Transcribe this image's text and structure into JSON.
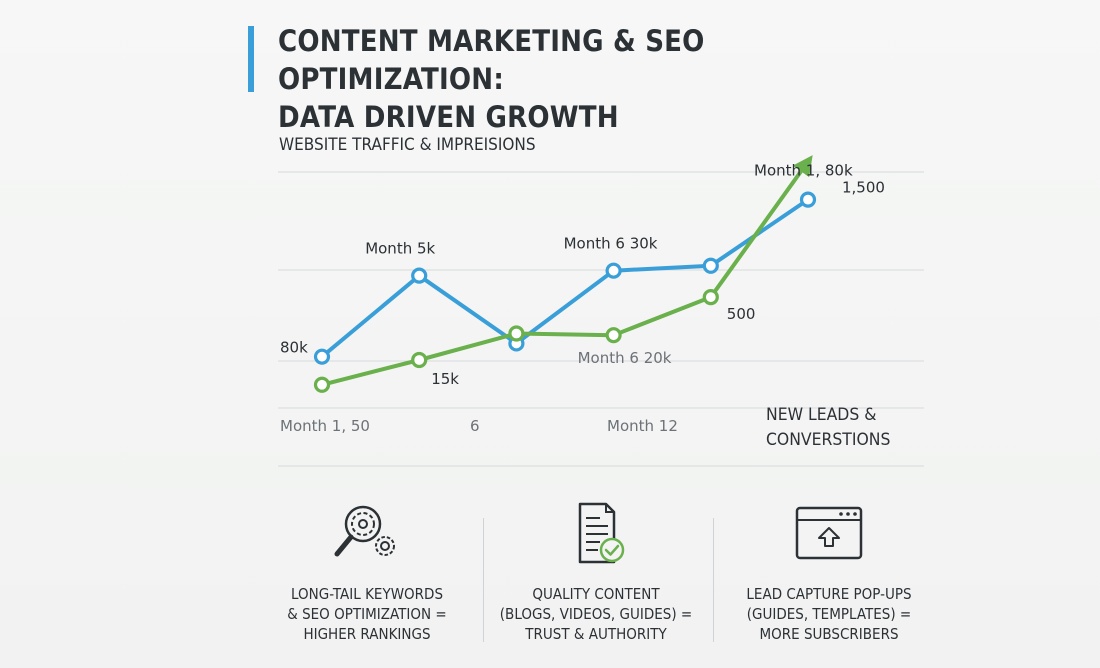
{
  "title": {
    "line1": "CONTENT MARKETING & SEO OPTIMIZATION:",
    "line2": "DATA DRIVEN GROWTH"
  },
  "colors": {
    "accent_bar": "#3a9fd8",
    "traffic_series": "#3a9fd8",
    "leads_series": "#6ab04c",
    "gridline": "#d7dadc",
    "text": "#2c3136"
  },
  "chart_data": {
    "type": "line",
    "title": "WEBSITE TRAFFIC & IMPREISIONS",
    "grid": true,
    "xlabel": "",
    "ylabel": "",
    "x_tick_labels": [
      "Month 1, 50",
      "6",
      "Month 12"
    ],
    "series": [
      {
        "name": "",
        "color": "#3a9fd8",
        "x": [
          1,
          2,
          3,
          4,
          5,
          6
        ],
        "values": [
          5,
          54,
          13,
          57,
          60,
          100
        ],
        "end_arrow": false
      },
      {
        "name": "NEW LEADS & CONVERSTIONS",
        "color": "#6ab04c",
        "x": [
          1,
          2,
          3,
          4,
          5,
          6
        ],
        "values": [
          -12,
          3,
          19,
          18,
          41,
          123
        ],
        "end_arrow": true,
        "end_marker": false
      }
    ],
    "ylim": [
      -20,
      130
    ],
    "annotations": [
      {
        "text": "80k",
        "tone": "dark",
        "series": 0,
        "point": 0
      },
      {
        "text": "Month  5k",
        "tone": "dark",
        "series": 0,
        "point": 1
      },
      {
        "text": "Month 6 30k",
        "tone": "dark",
        "series": 0,
        "point": 3
      },
      {
        "text": "Month 1, 80k",
        "tone": "dark",
        "series": 0,
        "point": 5
      },
      {
        "text": "15k",
        "tone": "dark",
        "series": 1,
        "point": 1
      },
      {
        "text": "Month 6 20k",
        "tone": "gray",
        "series": 1,
        "point": 3
      },
      {
        "text": "500",
        "tone": "dark",
        "series": 1,
        "point": 4
      },
      {
        "text": "1,500",
        "tone": "dark",
        "series": 1,
        "point": 5
      }
    ],
    "legend_placement": "bottom-right",
    "legend_text": [
      "NEW LEADS &",
      "CONVERSTIONS"
    ]
  },
  "features": [
    {
      "icon": "search-gear-icon",
      "lines": [
        "LONG-TAIL KEYWORDS",
        "& SEO OPTIMIZATION =",
        "HIGHER RANKINGS"
      ]
    },
    {
      "icon": "document-check-icon",
      "lines": [
        "QUALITY CONTENT",
        "(BLOGS, VIDEOS, GUIDES) =",
        "TRUST & AUTHORITY"
      ]
    },
    {
      "icon": "browser-upload-icon",
      "lines": [
        "LEAD CAPTURE POP-UPS",
        "(GUIDES, TEMPLATES) =",
        "MORE SUBSCRIBERS"
      ]
    }
  ]
}
